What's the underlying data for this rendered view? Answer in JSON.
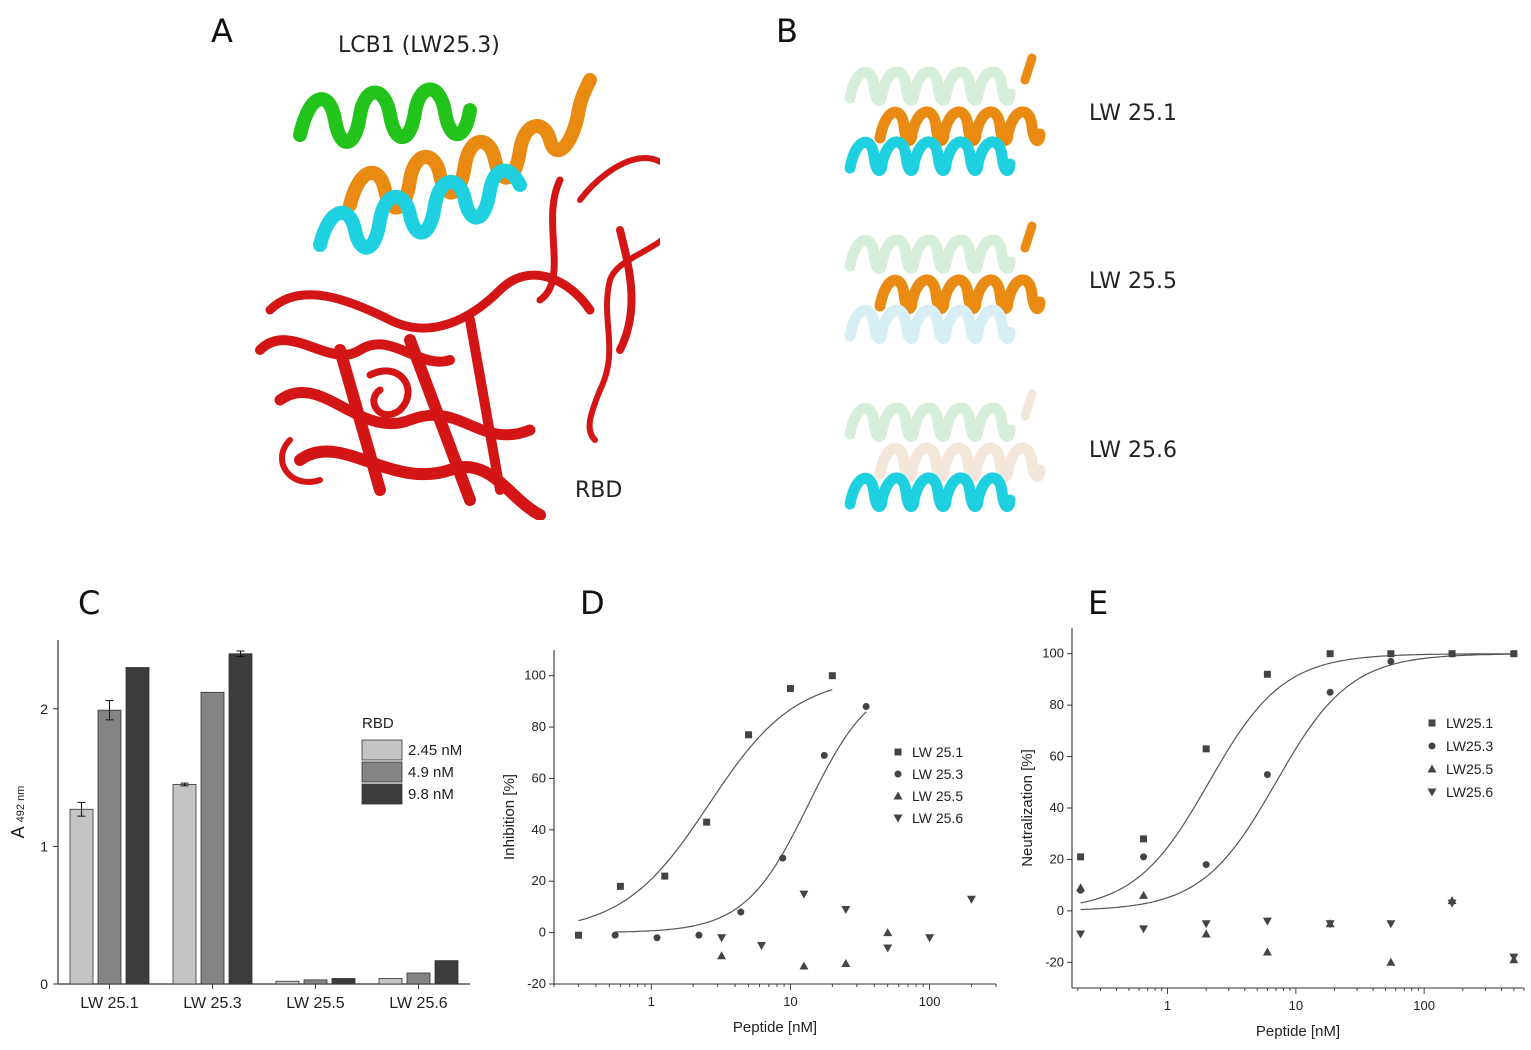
{
  "panels": {
    "a": {
      "letter": "A",
      "ligand_label": "LCB1 (LW25.3)",
      "receptor_label": "RBD"
    },
    "b": {
      "letter": "B",
      "variant_labels": [
        "LW 25.1",
        "LW 25.5",
        "LW 25.6"
      ]
    },
    "c": {
      "letter": "C"
    },
    "d": {
      "letter": "D"
    },
    "e": {
      "letter": "E"
    }
  },
  "colors": {
    "helix1": "#22c31a",
    "helix2": "#e98a12",
    "helix3": "#1fd0e0",
    "rbd": "#d31515",
    "faded_green": "#d8eedc",
    "faded_cyan": "#d6eef4",
    "faded_orange": "#f3e6da",
    "bar_light": "#c4c4c4",
    "bar_mid": "#848484",
    "bar_dark": "#3c3c3c",
    "marker": "#444444"
  },
  "chart_data": [
    {
      "type": "bar",
      "categories": [
        "LW 25.1",
        "LW 25.3",
        "LW 25.5",
        "LW 25.6"
      ],
      "ylabel": "A",
      "ylabel_sub": "492 nm",
      "ylim": [
        0,
        2.5
      ],
      "yticks": [
        0,
        1,
        2
      ],
      "legend_title": "RBD",
      "legend_placement": "right",
      "series": [
        {
          "name": "2.45 nM",
          "values": [
            1.27,
            1.45,
            0.02,
            0.04
          ],
          "errors": [
            0.05,
            0.01,
            0,
            0
          ]
        },
        {
          "name": "4.9 nM",
          "values": [
            1.99,
            2.12,
            0.03,
            0.08
          ],
          "errors": [
            0.07,
            0,
            0,
            0
          ]
        },
        {
          "name": "9.8 nM",
          "values": [
            2.3,
            2.4,
            0.04,
            0.17
          ],
          "errors": [
            0,
            0.02,
            0,
            0
          ]
        }
      ]
    },
    {
      "type": "scatter",
      "xscale": "log",
      "xlabel": "Peptide [nM]",
      "ylabel": "Inhibition [%]",
      "xlim": [
        0.2,
        300
      ],
      "ylim": [
        -20,
        110
      ],
      "xticks": [
        1,
        10,
        100
      ],
      "yticks": [
        -20,
        0,
        20,
        40,
        60,
        80,
        100
      ],
      "legend_placement": "right",
      "series": [
        {
          "name": "LW 25.1",
          "marker": "square",
          "x": [
            0.3,
            0.6,
            1.25,
            2.5,
            5,
            10,
            20
          ],
          "y": [
            -1,
            18,
            22,
            43,
            77,
            95,
            100
          ],
          "fit": {
            "ic50": 2.6,
            "hill": 1.4
          }
        },
        {
          "name": "LW 25.3",
          "marker": "circle",
          "x": [
            0.55,
            1.1,
            2.2,
            4.4,
            8.8,
            17.5,
            35
          ],
          "y": [
            -1,
            -2,
            -1,
            8,
            29,
            69,
            88
          ],
          "fit": {
            "ic50": 13.5,
            "hill": 1.9
          }
        },
        {
          "name": "LW 25.5",
          "marker": "triangle-up",
          "x": [
            3.2,
            12.5,
            25,
            50
          ],
          "y": [
            -9,
            -13,
            -12,
            0
          ],
          "fit": null
        },
        {
          "name": "LW 25.6",
          "marker": "triangle-down",
          "x": [
            3.2,
            6.2,
            12.5,
            25,
            50,
            100,
            200
          ],
          "y": [
            -2,
            -5,
            15,
            9,
            -6,
            -2,
            13
          ],
          "fit": null
        }
      ]
    },
    {
      "type": "scatter",
      "xscale": "log",
      "xlabel": "Peptide [nM]",
      "ylabel": "Neutralization [%]",
      "xlim": [
        0.18,
        600
      ],
      "ylim": [
        -30,
        110
      ],
      "xticks": [
        1,
        10,
        100
      ],
      "yticks": [
        -20,
        0,
        20,
        40,
        60,
        80,
        100
      ],
      "legend_placement": "right",
      "series": [
        {
          "name": "LW25.1",
          "marker": "square",
          "x": [
            0.21,
            0.65,
            2,
            6,
            18.5,
            55,
            165,
            500
          ],
          "y": [
            21,
            28,
            63,
            92,
            100,
            100,
            100,
            100
          ],
          "fit": {
            "ic50": 2.1,
            "hill": 1.5
          }
        },
        {
          "name": "LW25.3",
          "marker": "circle",
          "x": [
            0.21,
            0.65,
            2,
            6,
            18.5,
            55,
            165,
            500
          ],
          "y": [
            8,
            21,
            18,
            53,
            85,
            97,
            100,
            100
          ],
          "fit": {
            "ic50": 7,
            "hill": 1.5
          }
        },
        {
          "name": "LW25.5",
          "marker": "triangle-up",
          "x": [
            0.21,
            0.65,
            2,
            6,
            18.5,
            55,
            165,
            500
          ],
          "y": [
            9,
            6,
            -9,
            -16,
            -5,
            -20,
            4,
            -19
          ],
          "fit": null
        },
        {
          "name": "LW25.6",
          "marker": "triangle-down",
          "x": [
            0.21,
            0.65,
            2,
            6,
            18.5,
            55,
            165,
            500
          ],
          "y": [
            -9,
            -7,
            -5,
            -4,
            -5,
            -5,
            3,
            -18
          ],
          "fit": null
        }
      ]
    }
  ]
}
